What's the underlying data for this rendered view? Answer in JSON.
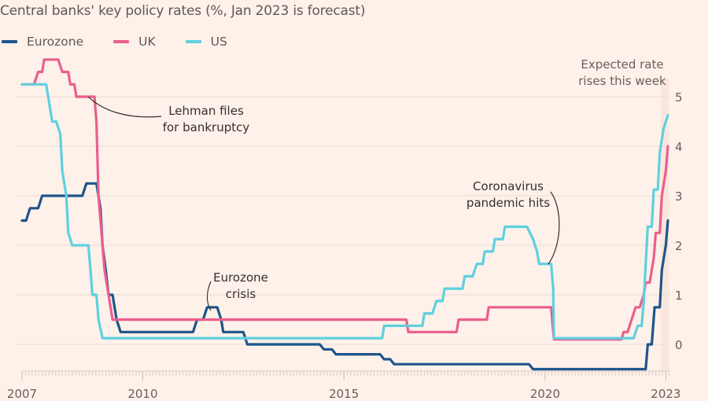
{
  "chart_data": {
    "type": "line",
    "title": "Central banks' key policy rates (%, Jan 2023 is forecast)",
    "xlabel": "",
    "ylabel": "",
    "xlim": [
      2007.0,
      2023.1
    ],
    "ylim": [
      -0.6,
      5.6
    ],
    "grid": true,
    "legend_position": "top-left",
    "x_ticks": [
      {
        "value": 2007,
        "label": "2007"
      },
      {
        "value": 2010,
        "label": "2010"
      },
      {
        "value": 2015,
        "label": "2015"
      },
      {
        "value": 2020,
        "label": "2020"
      },
      {
        "value": 2023,
        "label": "2023"
      }
    ],
    "y_ticks": [
      {
        "value": 0,
        "label": "0"
      },
      {
        "value": 1,
        "label": "1"
      },
      {
        "value": 2,
        "label": "2"
      },
      {
        "value": 3,
        "label": "3"
      },
      {
        "value": 4,
        "label": "4"
      },
      {
        "value": 5,
        "label": "5"
      }
    ],
    "series": [
      {
        "name": "Eurozone",
        "color": "#1e558c",
        "points": [
          [
            2007.0,
            2.5
          ],
          [
            2007.1,
            2.5
          ],
          [
            2007.2,
            2.75
          ],
          [
            2007.4,
            2.75
          ],
          [
            2007.5,
            3.0
          ],
          [
            2008.5,
            3.0
          ],
          [
            2008.6,
            3.25
          ],
          [
            2008.85,
            3.25
          ],
          [
            2008.95,
            2.75
          ],
          [
            2009.0,
            2.0
          ],
          [
            2009.08,
            1.5
          ],
          [
            2009.15,
            1.0
          ],
          [
            2009.25,
            1.0
          ],
          [
            2009.35,
            0.5
          ],
          [
            2009.45,
            0.25
          ],
          [
            2011.25,
            0.25
          ],
          [
            2011.35,
            0.5
          ],
          [
            2011.5,
            0.5
          ],
          [
            2011.6,
            0.75
          ],
          [
            2011.85,
            0.75
          ],
          [
            2011.95,
            0.5
          ],
          [
            2012.0,
            0.25
          ],
          [
            2012.5,
            0.25
          ],
          [
            2012.6,
            0.0
          ],
          [
            2014.4,
            0.0
          ],
          [
            2014.5,
            -0.1
          ],
          [
            2014.7,
            -0.1
          ],
          [
            2014.8,
            -0.2
          ],
          [
            2015.9,
            -0.2
          ],
          [
            2016.0,
            -0.3
          ],
          [
            2016.15,
            -0.3
          ],
          [
            2016.25,
            -0.4
          ],
          [
            2019.6,
            -0.4
          ],
          [
            2019.7,
            -0.5
          ],
          [
            2022.5,
            -0.5
          ],
          [
            2022.55,
            0.0
          ],
          [
            2022.65,
            0.0
          ],
          [
            2022.72,
            0.75
          ],
          [
            2022.85,
            0.75
          ],
          [
            2022.9,
            1.5
          ],
          [
            2023.0,
            2.0
          ],
          [
            2023.05,
            2.5
          ]
        ]
      },
      {
        "name": "UK",
        "color": "#eb5e8d",
        "points": [
          [
            2007.0,
            5.25
          ],
          [
            2007.3,
            5.25
          ],
          [
            2007.4,
            5.5
          ],
          [
            2007.5,
            5.5
          ],
          [
            2007.55,
            5.75
          ],
          [
            2007.9,
            5.75
          ],
          [
            2008.0,
            5.5
          ],
          [
            2008.15,
            5.5
          ],
          [
            2008.2,
            5.25
          ],
          [
            2008.3,
            5.25
          ],
          [
            2008.35,
            5.0
          ],
          [
            2008.8,
            5.0
          ],
          [
            2008.85,
            4.5
          ],
          [
            2008.9,
            3.0
          ],
          [
            2009.0,
            2.0
          ],
          [
            2009.05,
            1.5
          ],
          [
            2009.15,
            1.0
          ],
          [
            2009.25,
            0.5
          ],
          [
            2016.55,
            0.5
          ],
          [
            2016.6,
            0.25
          ],
          [
            2017.8,
            0.25
          ],
          [
            2017.85,
            0.5
          ],
          [
            2018.55,
            0.5
          ],
          [
            2018.6,
            0.75
          ],
          [
            2020.15,
            0.75
          ],
          [
            2020.2,
            0.25
          ],
          [
            2020.22,
            0.1
          ],
          [
            2021.9,
            0.1
          ],
          [
            2021.95,
            0.25
          ],
          [
            2022.05,
            0.25
          ],
          [
            2022.15,
            0.5
          ],
          [
            2022.25,
            0.75
          ],
          [
            2022.35,
            0.75
          ],
          [
            2022.45,
            1.0
          ],
          [
            2022.5,
            1.25
          ],
          [
            2022.6,
            1.25
          ],
          [
            2022.7,
            1.75
          ],
          [
            2022.75,
            2.25
          ],
          [
            2022.85,
            2.25
          ],
          [
            2022.9,
            3.0
          ],
          [
            2023.0,
            3.5
          ],
          [
            2023.05,
            4.0
          ]
        ]
      },
      {
        "name": "US",
        "color": "#5fd0e0",
        "points": [
          [
            2007.0,
            5.25
          ],
          [
            2007.6,
            5.25
          ],
          [
            2007.7,
            4.75
          ],
          [
            2007.75,
            4.5
          ],
          [
            2007.85,
            4.5
          ],
          [
            2007.95,
            4.25
          ],
          [
            2008.0,
            3.5
          ],
          [
            2008.1,
            3.0
          ],
          [
            2008.15,
            2.25
          ],
          [
            2008.25,
            2.0
          ],
          [
            2008.65,
            2.0
          ],
          [
            2008.7,
            1.5
          ],
          [
            2008.75,
            1.0
          ],
          [
            2008.85,
            1.0
          ],
          [
            2008.9,
            0.5
          ],
          [
            2009.0,
            0.125
          ],
          [
            2015.95,
            0.125
          ],
          [
            2016.0,
            0.375
          ],
          [
            2016.95,
            0.375
          ],
          [
            2017.0,
            0.625
          ],
          [
            2017.2,
            0.625
          ],
          [
            2017.3,
            0.875
          ],
          [
            2017.45,
            0.875
          ],
          [
            2017.5,
            1.125
          ],
          [
            2017.95,
            1.125
          ],
          [
            2018.0,
            1.375
          ],
          [
            2018.2,
            1.375
          ],
          [
            2018.3,
            1.625
          ],
          [
            2018.45,
            1.625
          ],
          [
            2018.5,
            1.875
          ],
          [
            2018.7,
            1.875
          ],
          [
            2018.75,
            2.125
          ],
          [
            2018.95,
            2.125
          ],
          [
            2019.0,
            2.375
          ],
          [
            2019.55,
            2.375
          ],
          [
            2019.7,
            2.125
          ],
          [
            2019.8,
            1.875
          ],
          [
            2019.85,
            1.625
          ],
          [
            2020.15,
            1.625
          ],
          [
            2020.2,
            1.125
          ],
          [
            2020.22,
            0.125
          ],
          [
            2022.2,
            0.125
          ],
          [
            2022.3,
            0.375
          ],
          [
            2022.4,
            0.375
          ],
          [
            2022.45,
            0.875
          ],
          [
            2022.5,
            1.625
          ],
          [
            2022.55,
            2.375
          ],
          [
            2022.65,
            2.375
          ],
          [
            2022.7,
            3.125
          ],
          [
            2022.8,
            3.125
          ],
          [
            2022.85,
            3.875
          ],
          [
            2022.95,
            4.375
          ],
          [
            2023.05,
            4.625
          ]
        ]
      }
    ],
    "annotations": [
      {
        "text_lines": [
          "Lehman files",
          "for bankruptcy"
        ],
        "x": 2008.7,
        "y": 5.0
      },
      {
        "text_lines": [
          "Eurozone",
          "crisis"
        ],
        "x": 2011.8,
        "y": 0.75
      },
      {
        "text_lines": [
          "Coronavirus",
          "pandemic hits"
        ],
        "x": 2020.1,
        "y": 1.625
      },
      {
        "text_lines": [
          "Expected rate",
          "rises this week"
        ],
        "x": 2023.0,
        "y": 5.3
      }
    ]
  },
  "labels": {
    "title": "Central banks' key policy rates (%, Jan 2023 is forecast)",
    "legend": [
      {
        "name": "Eurozone",
        "color": "#1e558c"
      },
      {
        "name": "UK",
        "color": "#eb5e8d"
      },
      {
        "name": "US",
        "color": "#5fd0e0"
      }
    ]
  }
}
